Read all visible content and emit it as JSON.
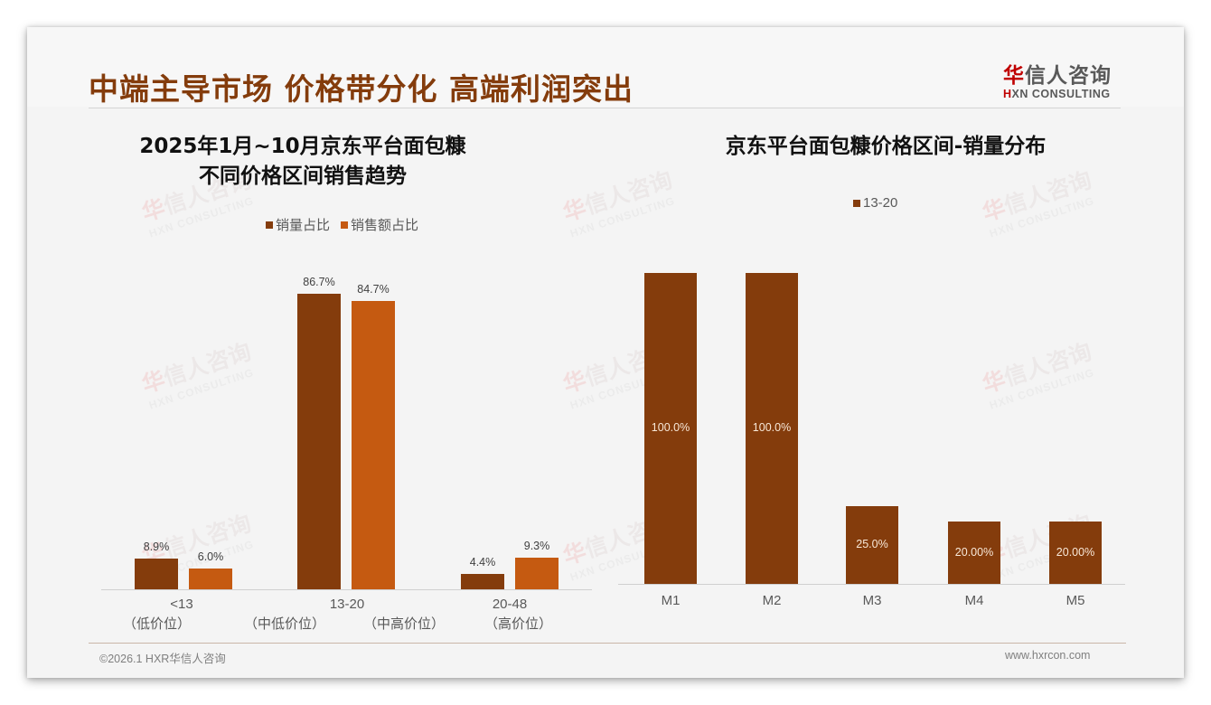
{
  "header": {
    "title": "中端主导市场 价格带分化 高端利润突出",
    "logo_cn_mark": "华",
    "logo_cn_rest": "信人咨询",
    "logo_en_mark": "H",
    "logo_en_rest": "XN CONSULTING"
  },
  "watermark": {
    "cn_mark": "华",
    "cn_rest": "信人咨询",
    "en": "HXN CONSULTING"
  },
  "colors": {
    "title": "#843c0c",
    "series_volume": "#843c0c",
    "series_sales": "#c55a11",
    "logo_red": "#c00000"
  },
  "chart_left": {
    "title_line1": "2025年1月~10月京东平台面包糠",
    "title_line2": "不同价格区间销售趋势",
    "legend": [
      "销量占比",
      "销售额占比"
    ],
    "categories": [
      "<13",
      "13-20",
      "20-48"
    ],
    "sub_labels": [
      "（低价位）",
      "（中低价位）",
      "（中高价位）",
      "（高价位）"
    ],
    "series": [
      {
        "name": "销量占比",
        "values": [
          8.9,
          86.7,
          4.4
        ],
        "labels": [
          "8.9%",
          "86.7%",
          "4.4%"
        ]
      },
      {
        "name": "销售额占比",
        "values": [
          6.0,
          84.7,
          9.3
        ],
        "labels": [
          "6.0%",
          "84.7%",
          "9.3%"
        ]
      }
    ]
  },
  "chart_right": {
    "title": "京东平台面包糠价格区间-销量分布",
    "legend": [
      "13-20"
    ],
    "categories": [
      "M1",
      "M2",
      "M3",
      "M4",
      "M5"
    ],
    "values": [
      100.0,
      100.0,
      25.0,
      20.0,
      20.0
    ],
    "labels": [
      "100.0%",
      "100.0%",
      "25.0%",
      "20.00%",
      "20.00%"
    ]
  },
  "chart_data": [
    {
      "type": "bar",
      "title": "2025年1月~10月京东平台面包糠不同价格区间销售趋势",
      "categories": [
        "<13（低价位）",
        "13-20（中低价位/中高价位）",
        "20-48（高价位）"
      ],
      "series": [
        {
          "name": "销量占比",
          "values": [
            8.9,
            86.7,
            4.4
          ]
        },
        {
          "name": "销售额占比",
          "values": [
            6.0,
            84.7,
            9.3
          ]
        }
      ],
      "xlabel": "",
      "ylabel": "",
      "ylim": [
        0,
        100
      ],
      "grid": false,
      "legend_position": "top",
      "unit": "%"
    },
    {
      "type": "bar",
      "title": "京东平台面包糠价格区间-销量分布",
      "categories": [
        "M1",
        "M2",
        "M3",
        "M4",
        "M5"
      ],
      "series": [
        {
          "name": "13-20",
          "values": [
            100.0,
            100.0,
            25.0,
            20.0,
            20.0
          ]
        }
      ],
      "xlabel": "",
      "ylabel": "",
      "ylim": [
        0,
        100
      ],
      "grid": false,
      "legend_position": "top",
      "unit": "%"
    }
  ],
  "footer": {
    "copyright": "©2026.1 HXR华信人咨询",
    "website": "www.hxrcon.com"
  }
}
